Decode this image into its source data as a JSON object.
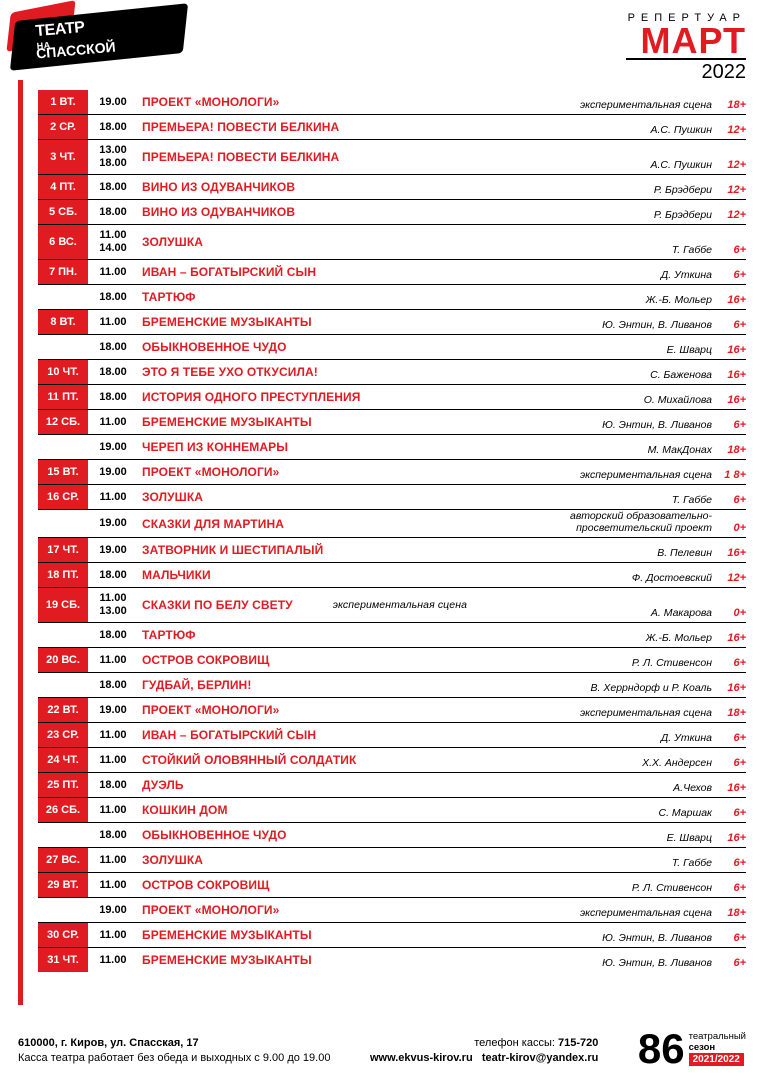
{
  "colors": {
    "accent": "#e11b22",
    "text": "#000",
    "bg": "#fff"
  },
  "header": {
    "logo_main": "ТЕАТР",
    "logo_on": "НА",
    "logo_sub": "СПАССКОЙ",
    "sup": "РЕПЕРТУАР",
    "month": "МАРТ",
    "year": "2022"
  },
  "rows": [
    {
      "day": "1 ВТ.",
      "time": [
        "19.00"
      ],
      "title": "ПРОЕКТ «МОНОЛОГИ»",
      "author": "экспериментальная  сцена",
      "age": "18+"
    },
    {
      "day": "2 СР.",
      "time": [
        "18.00"
      ],
      "title": "ПРЕМЬЕРА! ПОВЕСТИ БЕЛКИНА",
      "author": "А.С. Пушкин",
      "age": "12+"
    },
    {
      "day": "3 ЧТ.",
      "time": [
        "13.00",
        "18.00"
      ],
      "title": "ПРЕМЬЕРА! ПОВЕСТИ БЕЛКИНА",
      "author": "А.С. Пушкин",
      "age": "12+"
    },
    {
      "day": "4 ПТ.",
      "time": [
        "18.00"
      ],
      "title": "ВИНО ИЗ ОДУВАНЧИКОВ",
      "author": "Р. Брэдбери",
      "age": "12+"
    },
    {
      "day": "5 СБ.",
      "time": [
        "18.00"
      ],
      "title": "ВИНО ИЗ ОДУВАНЧИКОВ",
      "author": "Р. Брэдбери",
      "age": "12+"
    },
    {
      "day": "6 ВС.",
      "time": [
        "11.00",
        "14.00"
      ],
      "title": "ЗОЛУШКА",
      "author": "Т. Габбе",
      "age": "6+"
    },
    {
      "day": "7 ПН.",
      "time": [
        "11.00"
      ],
      "title": "ИВАН – БОГАТЫРСКИЙ СЫН",
      "author": "Д. Уткина",
      "age": "6+"
    },
    {
      "day": "",
      "time": [
        "18.00"
      ],
      "title": "ТАРТЮФ",
      "author": "Ж.-Б. Мольер",
      "age": "16+"
    },
    {
      "day": "8 ВТ.",
      "time": [
        "11.00"
      ],
      "title": "БРЕМЕНСКИЕ МУЗЫКАНТЫ",
      "author": "Ю. Энтин, В. Ливанов",
      "age": "6+"
    },
    {
      "day": "",
      "time": [
        "18.00"
      ],
      "title": "ОБЫКНОВЕННОЕ ЧУДО",
      "author": "Е. Шварц",
      "age": "16+"
    },
    {
      "day": "10  ЧТ.",
      "time": [
        "18.00"
      ],
      "title": "ЭТО Я ТЕБЕ УХО ОТКУСИЛА!",
      "author": "С. Баженова",
      "age": "16+"
    },
    {
      "day": "11 ПТ.",
      "time": [
        "18.00"
      ],
      "title": "ИСТОРИЯ ОДНОГО ПРЕСТУПЛЕНИЯ",
      "author": "О. Михайлова",
      "age": "16+"
    },
    {
      "day": "12 СБ.",
      "time": [
        "11.00"
      ],
      "title": "БРЕМЕНСКИЕ МУЗЫКАНТЫ",
      "author": "Ю. Энтин, В. Ливанов",
      "age": "6+"
    },
    {
      "day": "",
      "time": [
        "19.00"
      ],
      "title": "ЧЕРЕП ИЗ КОННЕМАРЫ",
      "author": "М. МакДонах",
      "age": "18+"
    },
    {
      "day": "15 ВТ.",
      "time": [
        "19.00"
      ],
      "title": "ПРОЕКТ «МОНОЛОГИ»",
      "author": "экспериментальная  сцена",
      "age": "1 8+"
    },
    {
      "day": "16 СР.",
      "time": [
        "11.00"
      ],
      "title": "ЗОЛУШКА",
      "author": "Т. Габбе",
      "age": "6+"
    },
    {
      "day": "",
      "time": [
        "19.00"
      ],
      "title": "СКАЗКИ ДЛЯ МАРТИНА",
      "author": "авторский образовательно-просветительский проект",
      "age": "0+"
    },
    {
      "day": "17 ЧТ.",
      "time": [
        "19.00"
      ],
      "title": "ЗАТВОРНИК И ШЕСТИПАЛЫЙ",
      "author": "В. Пелевин",
      "age": "16+"
    },
    {
      "day": "18 ПТ.",
      "time": [
        "18.00"
      ],
      "title": "МАЛЬЧИКИ",
      "author": "Ф. Достоевский",
      "age": "12+"
    },
    {
      "day": "19 СБ.",
      "time": [
        "11.00",
        "13.00"
      ],
      "title": "СКАЗКИ ПО БЕЛУ СВЕТУ",
      "note": "экспериментальная сцена",
      "author": "А. Макарова",
      "age": "0+"
    },
    {
      "day": "",
      "time": [
        "18.00"
      ],
      "title": "ТАРТЮФ",
      "author": "Ж.-Б. Мольер",
      "age": "16+"
    },
    {
      "day": "20 ВС.",
      "time": [
        "11.00"
      ],
      "title": "ОСТРОВ СОКРОВИЩ",
      "author": "Р. Л. Стивенсон",
      "age": "6+"
    },
    {
      "day": "",
      "time": [
        "18.00"
      ],
      "title": "ГУДБАЙ, БЕРЛИН!",
      "author": "В. Херрндорф и Р. Коаль",
      "age": "16+"
    },
    {
      "day": "22 ВТ.",
      "time": [
        "19.00"
      ],
      "title": "ПРОЕКТ «МОНОЛОГИ»",
      "author": "экспериментальная  сцена",
      "age": "18+"
    },
    {
      "day": "23 СР.",
      "time": [
        "11.00"
      ],
      "title": "ИВАН – БОГАТЫРСКИЙ СЫН",
      "author": "Д. Уткина",
      "age": "6+"
    },
    {
      "day": "24 ЧТ.",
      "time": [
        "11.00"
      ],
      "title": "СТОЙКИЙ ОЛОВЯННЫЙ СОЛДАТИК",
      "author": "Х.Х. Андерсен",
      "age": "6+"
    },
    {
      "day": "25 ПТ.",
      "time": [
        "18.00"
      ],
      "title": "ДУЭЛЬ",
      "author": "А.Чехов",
      "age": "16+"
    },
    {
      "day": "26 СБ.",
      "time": [
        "11.00"
      ],
      "title": "КОШКИН ДОМ",
      "author": "С. Маршак",
      "age": "6+"
    },
    {
      "day": "",
      "time": [
        "18.00"
      ],
      "title": "ОБЫКНОВЕННОЕ ЧУДО",
      "author": "Е. Шварц",
      "age": "16+"
    },
    {
      "day": "27 ВС.",
      "time": [
        "11.00"
      ],
      "title": "ЗОЛУШКА",
      "author": "Т. Габбе",
      "age": "6+"
    },
    {
      "day": "29 ВТ.",
      "time": [
        "11.00"
      ],
      "title": "ОСТРОВ СОКРОВИЩ",
      "author": "Р. Л. Стивенсон",
      "age": "6+"
    },
    {
      "day": "",
      "time": [
        "19.00"
      ],
      "title": "ПРОЕКТ «МОНОЛОГИ»",
      "author": "экспериментальная  сцена",
      "age": "18+"
    },
    {
      "day": "30 СР.",
      "time": [
        "11.00"
      ],
      "title": "БРЕМЕНСКИЕ МУЗЫКАНТЫ",
      "author": "Ю. Энтин, В. Ливанов",
      "age": "6+"
    },
    {
      "day": "31 ЧТ.",
      "time": [
        "11.00"
      ],
      "title": "БРЕМЕНСКИЕ МУЗЫКАНТЫ",
      "author": "Ю. Энтин, В. Ливанов",
      "age": "6+"
    }
  ],
  "footer": {
    "address": "610000, г. Киров, ул. Спасская, 17",
    "hours": "Касса театра работает без обеда и выходных с 9.00 до 19.00",
    "phone_label": "телефон кассы:",
    "phone": "715-720",
    "site": "www.ekvus-kirov.ru",
    "email": "teatr-kirov@yandex.ru",
    "season_num": "86",
    "season_label1": "театральный",
    "season_label2": "сезон",
    "season_years": "2021/2022"
  }
}
